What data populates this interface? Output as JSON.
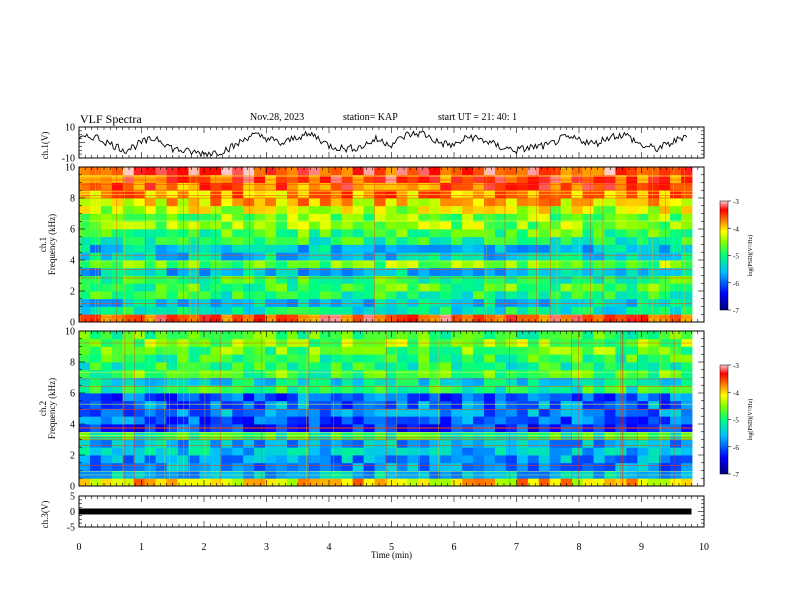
{
  "header": {
    "title": "VLF Spectra",
    "date": "Nov.28, 2023",
    "station": "station= KAP",
    "start": "start  UT =  21: 40: 1"
  },
  "colors": {
    "frame": "#000000",
    "spectrogram_scale": [
      "#00007f",
      "#0000ff",
      "#00bfff",
      "#00ff7f",
      "#7fff00",
      "#ffff00",
      "#ff7f00",
      "#ff0000",
      "#ffcccc"
    ]
  },
  "chart_data": [
    {
      "type": "line",
      "panel": "ch1_waveform",
      "ylabel": "ch.1(V)",
      "ylim": [
        -10,
        10
      ],
      "yticklabels": [
        "10",
        "-10"
      ],
      "x": [
        0,
        0.25,
        0.5,
        0.75,
        1,
        1.25,
        1.5,
        1.75,
        2,
        2.25,
        2.5,
        2.75,
        3,
        3.25,
        3.5,
        3.75,
        4,
        4.25,
        4.5,
        4.75,
        5,
        5.25,
        5.5,
        5.75,
        6,
        6.25,
        6.5,
        6.75,
        7,
        7.25,
        7.5,
        7.75,
        8,
        8.25,
        8.5,
        8.75,
        9,
        9.25,
        9.5,
        9.75
      ],
      "y": [
        2,
        4,
        -1,
        -5,
        0,
        3,
        -4,
        -6,
        -7,
        -6,
        -2,
        5,
        3,
        -1,
        4,
        5,
        -2,
        -4,
        -3,
        2,
        -1,
        5,
        6,
        0,
        -2,
        4,
        1,
        -3,
        -5,
        -3,
        -2,
        3,
        2,
        -1,
        4,
        5,
        -2,
        -4,
        0,
        6
      ],
      "xlim": [
        0,
        10
      ]
    },
    {
      "type": "heatmap",
      "panel": "ch1_spectrogram",
      "ylabel": "ch.1\nFrequency (kHz)",
      "ylim": [
        0,
        10
      ],
      "yticklabels": [
        "0",
        "2",
        "4",
        "6",
        "8",
        "10"
      ],
      "xlim": [
        0,
        10
      ],
      "colorbar": {
        "label": "log(PSD)(V²/Hz)",
        "range": [
          -7,
          -3
        ],
        "ticklabels": [
          "-3",
          "-4",
          "-5",
          "-6",
          "-7"
        ]
      },
      "freq_kHz": [
        0.25,
        0.75,
        1.25,
        1.75,
        2.25,
        2.75,
        3.25,
        3.75,
        4.25,
        4.75,
        5.25,
        5.75,
        6.25,
        6.75,
        7.25,
        7.75,
        8.25,
        8.75,
        9.25,
        9.75
      ],
      "log_psd": [
        -3.5,
        -5.2,
        -5.4,
        -5.0,
        -4.8,
        -4.9,
        -5.5,
        -4.6,
        -5.4,
        -5.5,
        -5.0,
        -4.8,
        -4.5,
        -4.6,
        -4.3,
        -4.0,
        -3.8,
        -3.6,
        -3.5,
        -3.4
      ]
    },
    {
      "type": "heatmap",
      "panel": "ch2_spectrogram",
      "ylabel": "ch.2\nFrequency (kHz)",
      "ylim": [
        0,
        10
      ],
      "yticklabels": [
        "0",
        "2",
        "4",
        "6",
        "8",
        "10"
      ],
      "xlim": [
        0,
        10
      ],
      "colorbar": {
        "label": "log(PSD)(V²/Hz)",
        "range": [
          -7,
          -3
        ],
        "ticklabels": [
          "-3",
          "-4",
          "-5",
          "-6",
          "-7"
        ]
      },
      "freq_kHz": [
        0.25,
        0.75,
        1.25,
        1.75,
        2.25,
        2.75,
        3.25,
        3.75,
        4.25,
        4.75,
        5.25,
        5.75,
        6.25,
        6.75,
        7.25,
        7.75,
        8.25,
        8.75,
        9.25,
        9.75
      ],
      "log_psd": [
        -4.0,
        -5.6,
        -5.8,
        -5.7,
        -5.5,
        -5.6,
        -5.0,
        -6.2,
        -6.0,
        -5.8,
        -5.9,
        -6.0,
        -5.0,
        -5.3,
        -4.8,
        -5.0,
        -4.9,
        -4.7,
        -4.6,
        -4.8
      ]
    },
    {
      "type": "line",
      "panel": "ch3_waveform",
      "ylabel": "ch.3(V)",
      "ylim": [
        -5,
        5
      ],
      "yticklabels": [
        "5",
        "0",
        "-5"
      ],
      "x": [
        0,
        9.8
      ],
      "y": [
        0,
        0
      ],
      "xlim": [
        0,
        10
      ]
    }
  ],
  "xaxis": {
    "label": "Time (min)",
    "ticklabels": [
      "0",
      "1",
      "2",
      "3",
      "4",
      "5",
      "6",
      "7",
      "8",
      "9",
      "10"
    ],
    "range": [
      0,
      10
    ]
  }
}
